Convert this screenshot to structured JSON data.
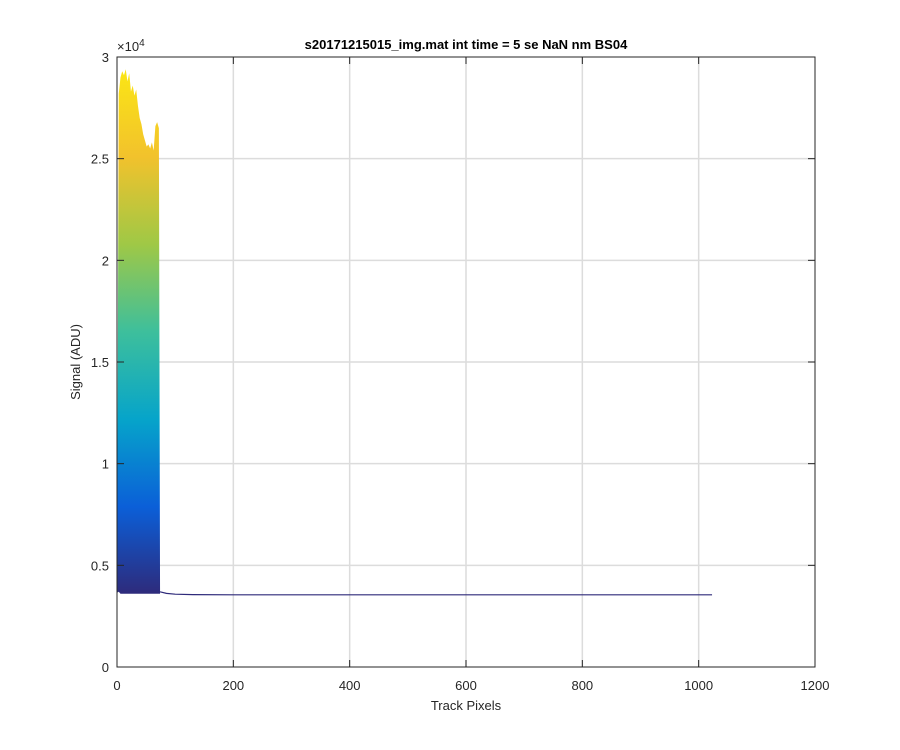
{
  "chart_data": {
    "type": "area",
    "title": "s20171215015_img.mat int time = 5 se  NaN nm BS04",
    "xlabel": "Track Pixels",
    "ylabel": "Signal (ADU)",
    "y_exponent_label": "×10",
    "y_exponent_power": "4",
    "xlim": [
      0,
      1200
    ],
    "ylim": [
      0,
      30000
    ],
    "xticks": [
      0,
      200,
      400,
      600,
      800,
      1000,
      1200
    ],
    "xtick_labels": [
      "0",
      "200",
      "400",
      "600",
      "800",
      "1000",
      "1200"
    ],
    "yticks": [
      0,
      5000,
      10000,
      15000,
      20000,
      25000,
      30000
    ],
    "ytick_labels": [
      "0",
      "0.5",
      "1",
      "1.5",
      "2",
      "2.5",
      "3"
    ],
    "grid": true,
    "colormap": [
      "#2e2a7a",
      "#0b5fd8",
      "#06a4ca",
      "#3dbf9c",
      "#9fc846",
      "#f2c22c",
      "#fbe615"
    ],
    "baseline": 3550,
    "fill_band": {
      "x": [
        0,
        3,
        6,
        9,
        12,
        15,
        18,
        21,
        24,
        27,
        30,
        33,
        36,
        39,
        42,
        45,
        48,
        51,
        54,
        57,
        60,
        63,
        66,
        69,
        72,
        74
      ],
      "lower": [
        3650,
        3700,
        3600,
        3600,
        3600,
        3600,
        3600,
        3600,
        3600,
        3600,
        3600,
        3600,
        3600,
        3600,
        3600,
        3600,
        3600,
        3600,
        3600,
        3600,
        3600,
        3600,
        3600,
        3600,
        3600,
        3600
      ],
      "upper": [
        3800,
        28200,
        29000,
        29300,
        29100,
        29400,
        28800,
        29200,
        28300,
        28600,
        28100,
        28400,
        27600,
        27000,
        26700,
        26200,
        25900,
        25600,
        25700,
        25500,
        25800,
        25400,
        26600,
        26800,
        26500,
        3900
      ]
    },
    "line": {
      "x": [
        74,
        85,
        100,
        130,
        200,
        400,
        600,
        800,
        1023
      ],
      "y": [
        3700,
        3620,
        3580,
        3560,
        3550,
        3550,
        3550,
        3550,
        3550
      ]
    }
  }
}
